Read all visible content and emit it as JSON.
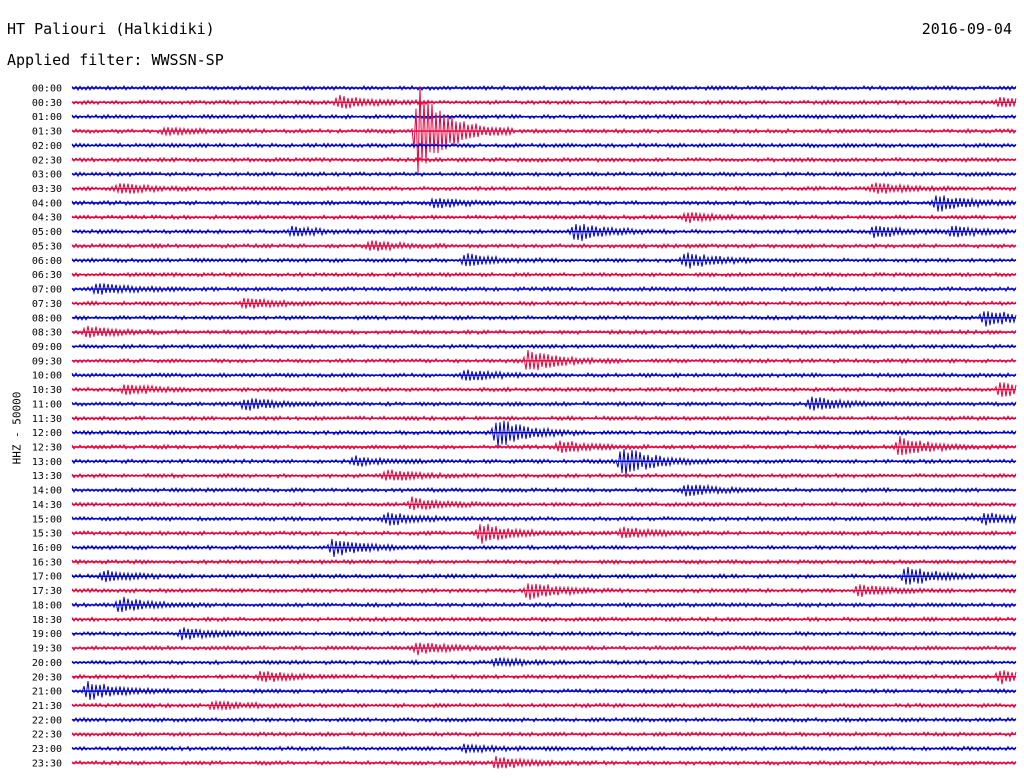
{
  "header": {
    "station": "HT Paliouri (Halkidiki)",
    "date": "2016-09-04",
    "filter": "Applied filter: WWSSN-SP"
  },
  "chart_data": {
    "type": "line",
    "title": "HT Paliouri (Halkidiki)",
    "subtitle": "Applied filter: WWSSN-SP",
    "ylabel": "HHZ - 50000",
    "date": "2016-09-04",
    "rows": [
      "00:00",
      "00:30",
      "01:00",
      "01:30",
      "02:00",
      "02:30",
      "03:00",
      "03:30",
      "04:00",
      "04:30",
      "05:00",
      "05:30",
      "06:00",
      "06:30",
      "07:00",
      "07:30",
      "08:00",
      "08:30",
      "09:00",
      "09:30",
      "10:00",
      "10:30",
      "11:00",
      "11:30",
      "12:00",
      "12:30",
      "13:00",
      "13:30",
      "14:00",
      "14:30",
      "15:00",
      "15:30",
      "16:00",
      "16:30",
      "17:00",
      "17:30",
      "18:00",
      "18:30",
      "19:00",
      "19:30",
      "20:00",
      "20:30",
      "21:00",
      "21:30",
      "22:00",
      "22:30",
      "23:00",
      "23:30"
    ],
    "row_minutes": 30,
    "colors": [
      "#0000cc",
      "#e8003c"
    ],
    "events": [
      {
        "row": 1,
        "minute": 8.5,
        "amp": 1.0
      },
      {
        "row": 1,
        "minute": 29.5,
        "amp": 0.8
      },
      {
        "row": 3,
        "minute": 11,
        "amp": 8.0
      },
      {
        "row": 3,
        "minute": 3,
        "amp": 0.6
      },
      {
        "row": 7,
        "minute": 1.5,
        "amp": 0.9
      },
      {
        "row": 7,
        "minute": 25.5,
        "amp": 0.9
      },
      {
        "row": 8,
        "minute": 11.5,
        "amp": 0.8
      },
      {
        "row": 8,
        "minute": 27.5,
        "amp": 1.4
      },
      {
        "row": 9,
        "minute": 19.5,
        "amp": 0.8
      },
      {
        "row": 10,
        "minute": 16,
        "amp": 1.6
      },
      {
        "row": 10,
        "minute": 7,
        "amp": 0.7
      },
      {
        "row": 10,
        "minute": 25.5,
        "amp": 1.0
      },
      {
        "row": 10,
        "minute": 28,
        "amp": 0.8
      },
      {
        "row": 11,
        "minute": 9.5,
        "amp": 0.8
      },
      {
        "row": 12,
        "minute": 12.5,
        "amp": 1.1
      },
      {
        "row": 12,
        "minute": 19.5,
        "amp": 1.3
      },
      {
        "row": 14,
        "minute": 0.8,
        "amp": 1.0
      },
      {
        "row": 15,
        "minute": 5.5,
        "amp": 0.8
      },
      {
        "row": 16,
        "minute": 29,
        "amp": 1.4
      },
      {
        "row": 17,
        "minute": 0.5,
        "amp": 0.9
      },
      {
        "row": 19,
        "minute": 14.5,
        "amp": 2.0
      },
      {
        "row": 20,
        "minute": 12.5,
        "amp": 1.0
      },
      {
        "row": 21,
        "minute": 1.7,
        "amp": 0.8
      },
      {
        "row": 21,
        "minute": 29.5,
        "amp": 1.2
      },
      {
        "row": 22,
        "minute": 5.5,
        "amp": 1.0
      },
      {
        "row": 22,
        "minute": 23.5,
        "amp": 1.2
      },
      {
        "row": 24,
        "minute": 13.5,
        "amp": 2.5
      },
      {
        "row": 25,
        "minute": 15.5,
        "amp": 1.0
      },
      {
        "row": 25,
        "minute": 26.3,
        "amp": 1.6
      },
      {
        "row": 26,
        "minute": 17.5,
        "amp": 2.5
      },
      {
        "row": 26,
        "minute": 9,
        "amp": 0.7
      },
      {
        "row": 27,
        "minute": 10,
        "amp": 0.9
      },
      {
        "row": 28,
        "minute": 19.5,
        "amp": 1.0
      },
      {
        "row": 29,
        "minute": 10.8,
        "amp": 1.0
      },
      {
        "row": 30,
        "minute": 10,
        "amp": 1.1
      },
      {
        "row": 30,
        "minute": 29,
        "amp": 1.0
      },
      {
        "row": 31,
        "minute": 13,
        "amp": 1.8
      },
      {
        "row": 31,
        "minute": 17.5,
        "amp": 0.9
      },
      {
        "row": 32,
        "minute": 8.3,
        "amp": 1.7
      },
      {
        "row": 34,
        "minute": 26.5,
        "amp": 1.6
      },
      {
        "row": 34,
        "minute": 1.0,
        "amp": 0.8
      },
      {
        "row": 35,
        "minute": 14.5,
        "amp": 1.4
      },
      {
        "row": 35,
        "minute": 25,
        "amp": 1.0
      },
      {
        "row": 36,
        "minute": 1.5,
        "amp": 1.2
      },
      {
        "row": 38,
        "minute": 3.5,
        "amp": 1.0
      },
      {
        "row": 39,
        "minute": 11,
        "amp": 1.0
      },
      {
        "row": 40,
        "minute": 13.5,
        "amp": 0.6
      },
      {
        "row": 41,
        "minute": 6,
        "amp": 0.9
      },
      {
        "row": 41,
        "minute": 29.5,
        "amp": 1.1
      },
      {
        "row": 42,
        "minute": 0.5,
        "amp": 1.6
      },
      {
        "row": 43,
        "minute": 4.5,
        "amp": 0.7
      },
      {
        "row": 46,
        "minute": 12.5,
        "amp": 0.6
      },
      {
        "row": 47,
        "minute": 13.5,
        "amp": 1.0
      }
    ]
  }
}
